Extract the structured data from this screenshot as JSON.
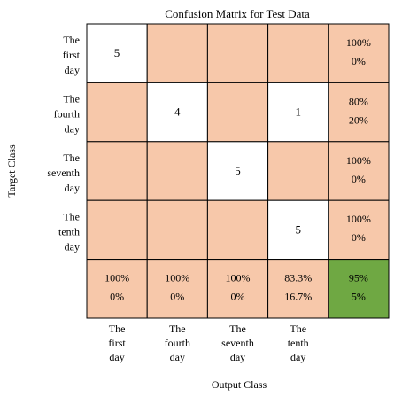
{
  "chart_data": {
    "type": "heatmap",
    "title": "Confusion Matrix for Test Data",
    "xlabel": "Output Class",
    "ylabel": "Target Class",
    "row_labels": [
      [
        "The",
        "first",
        "day"
      ],
      [
        "The",
        "fourth",
        "day"
      ],
      [
        "The",
        "seventh",
        "day"
      ],
      [
        "The",
        "tenth",
        "day"
      ]
    ],
    "col_labels": [
      [
        "The",
        "first",
        "day"
      ],
      [
        "The",
        "fourth",
        "day"
      ],
      [
        "The",
        "seventh",
        "day"
      ],
      [
        "The",
        "tenth",
        "day"
      ]
    ],
    "matrix": [
      [
        5,
        null,
        null,
        null
      ],
      [
        null,
        4,
        null,
        1
      ],
      [
        null,
        null,
        5,
        null
      ],
      [
        null,
        null,
        null,
        5
      ]
    ],
    "row_summary": [
      [
        "100%",
        "0%"
      ],
      [
        "80%",
        "20%"
      ],
      [
        "100%",
        "0%"
      ],
      [
        "100%",
        "0%"
      ]
    ],
    "col_summary": [
      [
        "100%",
        "0%"
      ],
      [
        "100%",
        "0%"
      ],
      [
        "100%",
        "0%"
      ],
      [
        "83.3%",
        "16.7%"
      ]
    ],
    "overall": [
      "95%",
      "5%"
    ],
    "colors": {
      "value_cell": "#ffffff",
      "empty_cell": "#f7c8aa",
      "summary_cell": "#f7c8aa",
      "overall_cell": "#6fa843",
      "border": "#000000"
    }
  }
}
